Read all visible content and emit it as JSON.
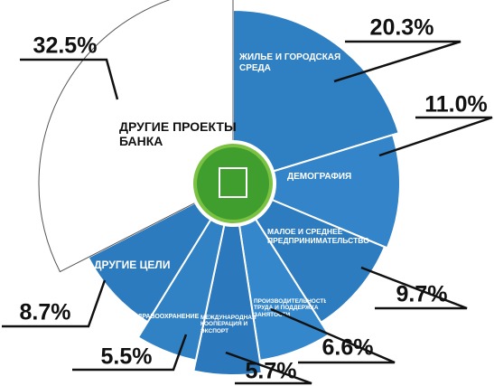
{
  "chart_data": {
    "type": "pie",
    "categories": [
      "ЖИЛЬЕ И ГОРОДСКАЯ СРЕДА",
      "ДЕМОГРАФИЯ",
      "МАЛОЕ И СРЕДНЕЕ ПРЕДПРИНИМАТЕЛЬСТВО",
      "ПРОИЗВОДИТЕЛЬНОСТЬ ТРУДА И ПОДДЕРЖКА ЗАНЯТОСТИ",
      "МЕЖДУНАРОДНАЯ КООПЕРАЦИЯ И ЭКСПОРТ",
      "ЗДРАВООХРАНЕНИЕ",
      "ДРУГИЕ ЦЕЛИ",
      "ДРУГИЕ ПРОЕКТЫ БАНКА"
    ],
    "values": [
      20.3,
      11.0,
      9.7,
      6.6,
      5.7,
      5.5,
      8.7,
      32.5
    ],
    "value_labels": [
      "20.3%",
      "11.0%",
      "9.7%",
      "6.6%",
      "5.7%",
      "5.5%",
      "8.7%",
      "32.5%"
    ],
    "colors": [
      "#2f7fc3",
      "#3384c8",
      "#2e7cc0",
      "#3587cb",
      "#2b78bc",
      "#3181c5",
      "#2d7bbf",
      "#ffffff"
    ]
  }
}
